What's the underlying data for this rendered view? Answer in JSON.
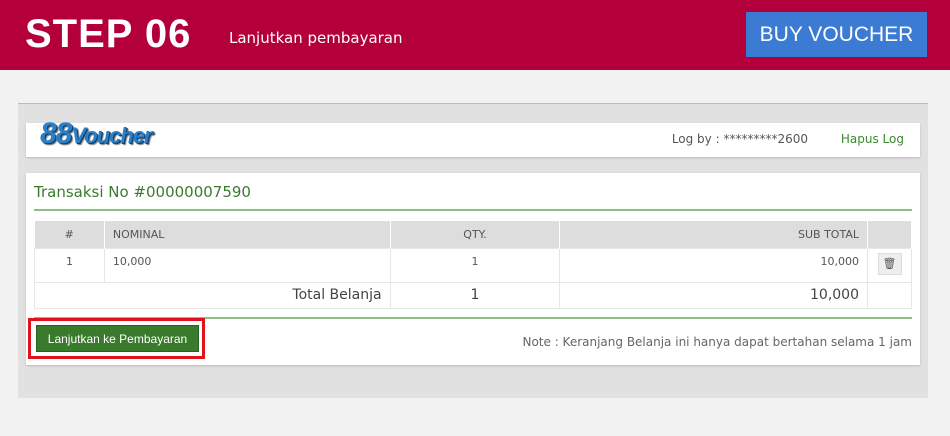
{
  "header": {
    "step": "STEP 06",
    "subtitle": "Lanjutkan pembayaran",
    "buy_label": "BUY VOUCHER",
    "color": "#b4003a"
  },
  "site": {
    "logo": "88Voucher",
    "log_by": "Log by : *********2600",
    "hapus_log": "Hapus Log"
  },
  "transaction": {
    "title": "Transaksi No #00000007590",
    "columns": [
      "#",
      "NOMINAL",
      "QTY.",
      "SUB TOTAL"
    ],
    "rows": [
      {
        "no": "1",
        "nominal": "10,000",
        "qty": "1",
        "subtotal": "10,000"
      }
    ],
    "total_label": "Total Belanja",
    "total_qty": "1",
    "total": "10,000"
  },
  "actions": {
    "continue_label": "Lanjutkan ke Pembayaran",
    "note": "Note : Keranjang Belanja ini hanya dapat bertahan selama 1 jam"
  }
}
